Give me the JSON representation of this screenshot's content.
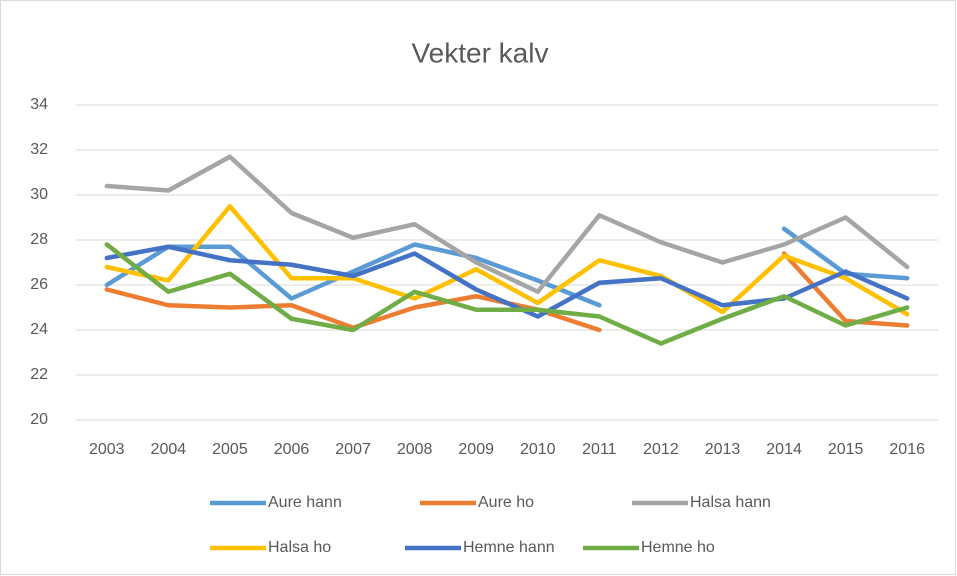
{
  "chart_data": {
    "type": "line",
    "title": "Vekter kalv",
    "categories": [
      "2003",
      "2004",
      "2005",
      "2006",
      "2007",
      "2008",
      "2009",
      "2010",
      "2011",
      "2012",
      "2013",
      "2014",
      "2015",
      "2016"
    ],
    "series": [
      {
        "name": "Aure hann",
        "color": "#5B9BD5",
        "values": [
          26.0,
          27.7,
          27.7,
          25.4,
          26.6,
          27.8,
          27.2,
          26.2,
          25.1,
          null,
          null,
          28.5,
          26.5,
          26.3
        ]
      },
      {
        "name": "Aure ho",
        "color": "#ED7D31",
        "values": [
          25.8,
          25.1,
          25.0,
          25.1,
          24.1,
          25.0,
          25.5,
          24.9,
          24.0,
          null,
          null,
          27.4,
          24.4,
          24.2
        ]
      },
      {
        "name": "Halsa hann",
        "color": "#A5A5A5",
        "values": [
          30.4,
          30.2,
          31.7,
          29.2,
          28.1,
          28.7,
          27.0,
          25.7,
          29.1,
          27.9,
          27.0,
          27.8,
          29.0,
          26.8
        ]
      },
      {
        "name": "Halsa ho",
        "color": "#FFC000",
        "values": [
          26.8,
          26.2,
          29.5,
          26.3,
          26.3,
          25.4,
          26.7,
          25.2,
          27.1,
          26.4,
          24.8,
          27.3,
          26.3,
          24.7
        ]
      },
      {
        "name": "Hemne hann",
        "color": "#4472C4",
        "values": [
          27.2,
          27.7,
          27.1,
          26.9,
          26.4,
          27.4,
          25.8,
          24.6,
          26.1,
          26.3,
          25.1,
          25.4,
          26.6,
          25.4
        ]
      },
      {
        "name": "Hemne ho",
        "color": "#70AD47",
        "values": [
          27.8,
          25.7,
          26.5,
          24.5,
          24.0,
          25.7,
          24.9,
          24.9,
          24.6,
          23.4,
          24.5,
          25.5,
          24.2,
          25.0
        ]
      }
    ],
    "ylim": [
      20,
      34
    ],
    "yticks": [
      20,
      22,
      24,
      26,
      28,
      30,
      32,
      34
    ],
    "grid": true,
    "legend": "bottom"
  }
}
